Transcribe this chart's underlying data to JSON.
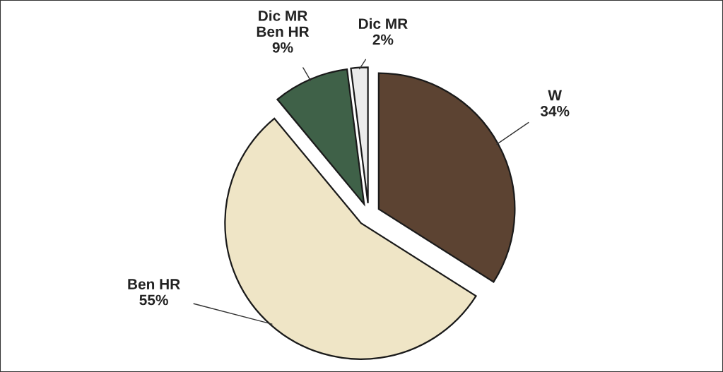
{
  "chart_data": {
    "type": "pie",
    "categories": [
      "W",
      "Ben HR",
      "Dic MR\nBen HR",
      "Dic MR"
    ],
    "values": [
      34,
      55,
      9,
      2
    ],
    "colors": [
      "#5c4332",
      "#efe5c6",
      "#3f6148",
      "#ebebeb"
    ],
    "value_labels": [
      "34%",
      "55%",
      "9%",
      "2%"
    ]
  }
}
